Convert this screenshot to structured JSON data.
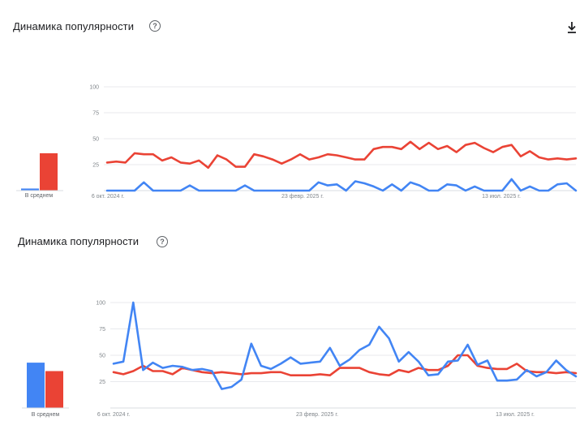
{
  "download_icon": "download-icon",
  "help_icon": "help-icon",
  "panels": [
    {
      "title": "Динамика популярности",
      "help_glyph": "?",
      "avg_label": "В среднем"
    },
    {
      "title": "Динамика популярности",
      "help_glyph": "?",
      "avg_label": "В среднем"
    }
  ],
  "chart_data": [
    {
      "type": "line",
      "ylim": [
        0,
        100
      ],
      "yticks": [
        "100",
        "75",
        "50",
        "25"
      ],
      "x_tick_labels": [
        "6 окт. 2024 г.",
        "23 февр. 2025 г.",
        "13 июл. 2025 г."
      ],
      "grid": true,
      "series": [
        {
          "color": "#4285f4",
          "average": 2,
          "values": [
            0,
            0,
            0,
            0,
            8,
            0,
            0,
            0,
            0,
            5,
            0,
            0,
            0,
            0,
            0,
            5,
            0,
            0,
            0,
            0,
            0,
            0,
            0,
            8,
            5,
            6,
            0,
            9,
            7,
            4,
            0,
            6,
            0,
            8,
            5,
            0,
            0,
            6,
            5,
            0,
            4,
            0,
            0,
            0,
            11,
            0,
            4,
            0,
            0,
            6,
            7,
            0
          ]
        },
        {
          "color": "#ea4335",
          "average": 36,
          "values": [
            27,
            28,
            27,
            36,
            35,
            35,
            29,
            32,
            27,
            26,
            29,
            22,
            34,
            30,
            23,
            23,
            35,
            33,
            30,
            26,
            30,
            35,
            30,
            32,
            35,
            34,
            32,
            30,
            30,
            40,
            42,
            42,
            40,
            47,
            40,
            46,
            40,
            43,
            37,
            44,
            46,
            41,
            37,
            42,
            44,
            33,
            38,
            32,
            30,
            31,
            30,
            31
          ]
        }
      ]
    },
    {
      "type": "line",
      "ylim": [
        0,
        100
      ],
      "yticks": [
        "100",
        "75",
        "50",
        "25"
      ],
      "x_tick_labels": [
        "6 окт. 2024 г.",
        "23 февр. 2025 г.",
        "13 июл. 2025 г."
      ],
      "grid": true,
      "series": [
        {
          "color": "#4285f4",
          "average": 43,
          "values": [
            42,
            44,
            100,
            36,
            43,
            38,
            40,
            39,
            36,
            37,
            35,
            18,
            20,
            27,
            61,
            40,
            37,
            42,
            48,
            42,
            43,
            44,
            57,
            40,
            46,
            55,
            60,
            77,
            66,
            44,
            53,
            44,
            31,
            32,
            44,
            45,
            60,
            41,
            45,
            26,
            26,
            27,
            36,
            30,
            34,
            45,
            36,
            30
          ]
        },
        {
          "color": "#ea4335",
          "average": 35,
          "values": [
            34,
            32,
            35,
            40,
            35,
            35,
            32,
            38,
            36,
            34,
            33,
            34,
            33,
            32,
            33,
            33,
            34,
            34,
            31,
            31,
            31,
            32,
            31,
            38,
            38,
            38,
            34,
            32,
            31,
            36,
            34,
            38,
            36,
            36,
            40,
            50,
            50,
            40,
            38,
            37,
            37,
            42,
            35,
            34,
            34,
            33,
            34,
            33
          ]
        }
      ]
    }
  ]
}
